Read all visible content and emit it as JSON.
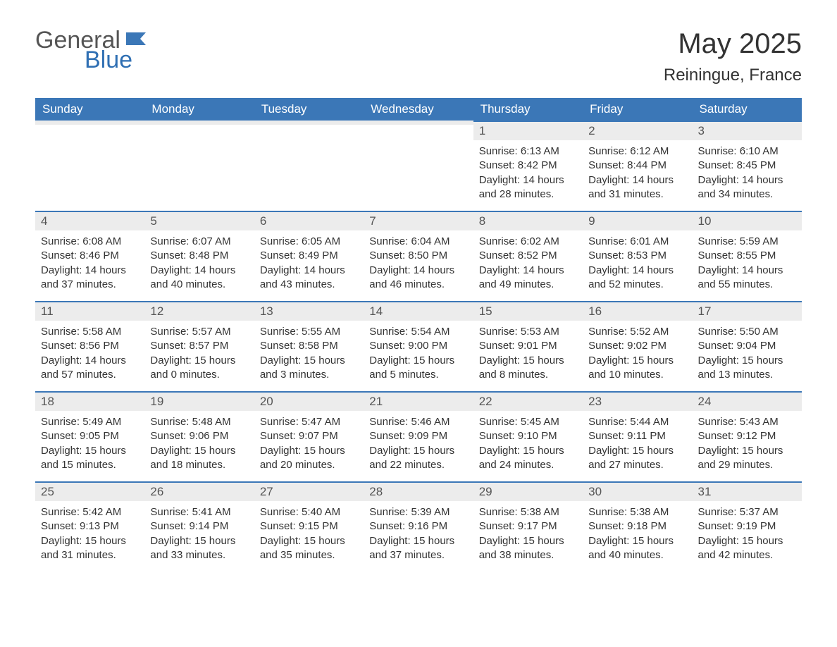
{
  "logo": {
    "text_general": "General",
    "text_blue": "Blue",
    "flag_color": "#3b77b7"
  },
  "title": {
    "month": "May 2025",
    "location": "Reiningue, France"
  },
  "colors": {
    "header_bg": "#3b77b7",
    "header_text": "#ffffff",
    "daybar_bg": "#ececec",
    "daybar_border": "#3b77b7",
    "body_text": "#333333",
    "page_bg": "#ffffff"
  },
  "weekdays": [
    "Sunday",
    "Monday",
    "Tuesday",
    "Wednesday",
    "Thursday",
    "Friday",
    "Saturday"
  ],
  "weeks": [
    [
      {
        "day": "",
        "sunrise": "",
        "sunset": "",
        "daylight": ""
      },
      {
        "day": "",
        "sunrise": "",
        "sunset": "",
        "daylight": ""
      },
      {
        "day": "",
        "sunrise": "",
        "sunset": "",
        "daylight": ""
      },
      {
        "day": "",
        "sunrise": "",
        "sunset": "",
        "daylight": ""
      },
      {
        "day": "1",
        "sunrise": "Sunrise: 6:13 AM",
        "sunset": "Sunset: 8:42 PM",
        "daylight": "Daylight: 14 hours and 28 minutes."
      },
      {
        "day": "2",
        "sunrise": "Sunrise: 6:12 AM",
        "sunset": "Sunset: 8:44 PM",
        "daylight": "Daylight: 14 hours and 31 minutes."
      },
      {
        "day": "3",
        "sunrise": "Sunrise: 6:10 AM",
        "sunset": "Sunset: 8:45 PM",
        "daylight": "Daylight: 14 hours and 34 minutes."
      }
    ],
    [
      {
        "day": "4",
        "sunrise": "Sunrise: 6:08 AM",
        "sunset": "Sunset: 8:46 PM",
        "daylight": "Daylight: 14 hours and 37 minutes."
      },
      {
        "day": "5",
        "sunrise": "Sunrise: 6:07 AM",
        "sunset": "Sunset: 8:48 PM",
        "daylight": "Daylight: 14 hours and 40 minutes."
      },
      {
        "day": "6",
        "sunrise": "Sunrise: 6:05 AM",
        "sunset": "Sunset: 8:49 PM",
        "daylight": "Daylight: 14 hours and 43 minutes."
      },
      {
        "day": "7",
        "sunrise": "Sunrise: 6:04 AM",
        "sunset": "Sunset: 8:50 PM",
        "daylight": "Daylight: 14 hours and 46 minutes."
      },
      {
        "day": "8",
        "sunrise": "Sunrise: 6:02 AM",
        "sunset": "Sunset: 8:52 PM",
        "daylight": "Daylight: 14 hours and 49 minutes."
      },
      {
        "day": "9",
        "sunrise": "Sunrise: 6:01 AM",
        "sunset": "Sunset: 8:53 PM",
        "daylight": "Daylight: 14 hours and 52 minutes."
      },
      {
        "day": "10",
        "sunrise": "Sunrise: 5:59 AM",
        "sunset": "Sunset: 8:55 PM",
        "daylight": "Daylight: 14 hours and 55 minutes."
      }
    ],
    [
      {
        "day": "11",
        "sunrise": "Sunrise: 5:58 AM",
        "sunset": "Sunset: 8:56 PM",
        "daylight": "Daylight: 14 hours and 57 minutes."
      },
      {
        "day": "12",
        "sunrise": "Sunrise: 5:57 AM",
        "sunset": "Sunset: 8:57 PM",
        "daylight": "Daylight: 15 hours and 0 minutes."
      },
      {
        "day": "13",
        "sunrise": "Sunrise: 5:55 AM",
        "sunset": "Sunset: 8:58 PM",
        "daylight": "Daylight: 15 hours and 3 minutes."
      },
      {
        "day": "14",
        "sunrise": "Sunrise: 5:54 AM",
        "sunset": "Sunset: 9:00 PM",
        "daylight": "Daylight: 15 hours and 5 minutes."
      },
      {
        "day": "15",
        "sunrise": "Sunrise: 5:53 AM",
        "sunset": "Sunset: 9:01 PM",
        "daylight": "Daylight: 15 hours and 8 minutes."
      },
      {
        "day": "16",
        "sunrise": "Sunrise: 5:52 AM",
        "sunset": "Sunset: 9:02 PM",
        "daylight": "Daylight: 15 hours and 10 minutes."
      },
      {
        "day": "17",
        "sunrise": "Sunrise: 5:50 AM",
        "sunset": "Sunset: 9:04 PM",
        "daylight": "Daylight: 15 hours and 13 minutes."
      }
    ],
    [
      {
        "day": "18",
        "sunrise": "Sunrise: 5:49 AM",
        "sunset": "Sunset: 9:05 PM",
        "daylight": "Daylight: 15 hours and 15 minutes."
      },
      {
        "day": "19",
        "sunrise": "Sunrise: 5:48 AM",
        "sunset": "Sunset: 9:06 PM",
        "daylight": "Daylight: 15 hours and 18 minutes."
      },
      {
        "day": "20",
        "sunrise": "Sunrise: 5:47 AM",
        "sunset": "Sunset: 9:07 PM",
        "daylight": "Daylight: 15 hours and 20 minutes."
      },
      {
        "day": "21",
        "sunrise": "Sunrise: 5:46 AM",
        "sunset": "Sunset: 9:09 PM",
        "daylight": "Daylight: 15 hours and 22 minutes."
      },
      {
        "day": "22",
        "sunrise": "Sunrise: 5:45 AM",
        "sunset": "Sunset: 9:10 PM",
        "daylight": "Daylight: 15 hours and 24 minutes."
      },
      {
        "day": "23",
        "sunrise": "Sunrise: 5:44 AM",
        "sunset": "Sunset: 9:11 PM",
        "daylight": "Daylight: 15 hours and 27 minutes."
      },
      {
        "day": "24",
        "sunrise": "Sunrise: 5:43 AM",
        "sunset": "Sunset: 9:12 PM",
        "daylight": "Daylight: 15 hours and 29 minutes."
      }
    ],
    [
      {
        "day": "25",
        "sunrise": "Sunrise: 5:42 AM",
        "sunset": "Sunset: 9:13 PM",
        "daylight": "Daylight: 15 hours and 31 minutes."
      },
      {
        "day": "26",
        "sunrise": "Sunrise: 5:41 AM",
        "sunset": "Sunset: 9:14 PM",
        "daylight": "Daylight: 15 hours and 33 minutes."
      },
      {
        "day": "27",
        "sunrise": "Sunrise: 5:40 AM",
        "sunset": "Sunset: 9:15 PM",
        "daylight": "Daylight: 15 hours and 35 minutes."
      },
      {
        "day": "28",
        "sunrise": "Sunrise: 5:39 AM",
        "sunset": "Sunset: 9:16 PM",
        "daylight": "Daylight: 15 hours and 37 minutes."
      },
      {
        "day": "29",
        "sunrise": "Sunrise: 5:38 AM",
        "sunset": "Sunset: 9:17 PM",
        "daylight": "Daylight: 15 hours and 38 minutes."
      },
      {
        "day": "30",
        "sunrise": "Sunrise: 5:38 AM",
        "sunset": "Sunset: 9:18 PM",
        "daylight": "Daylight: 15 hours and 40 minutes."
      },
      {
        "day": "31",
        "sunrise": "Sunrise: 5:37 AM",
        "sunset": "Sunset: 9:19 PM",
        "daylight": "Daylight: 15 hours and 42 minutes."
      }
    ]
  ]
}
